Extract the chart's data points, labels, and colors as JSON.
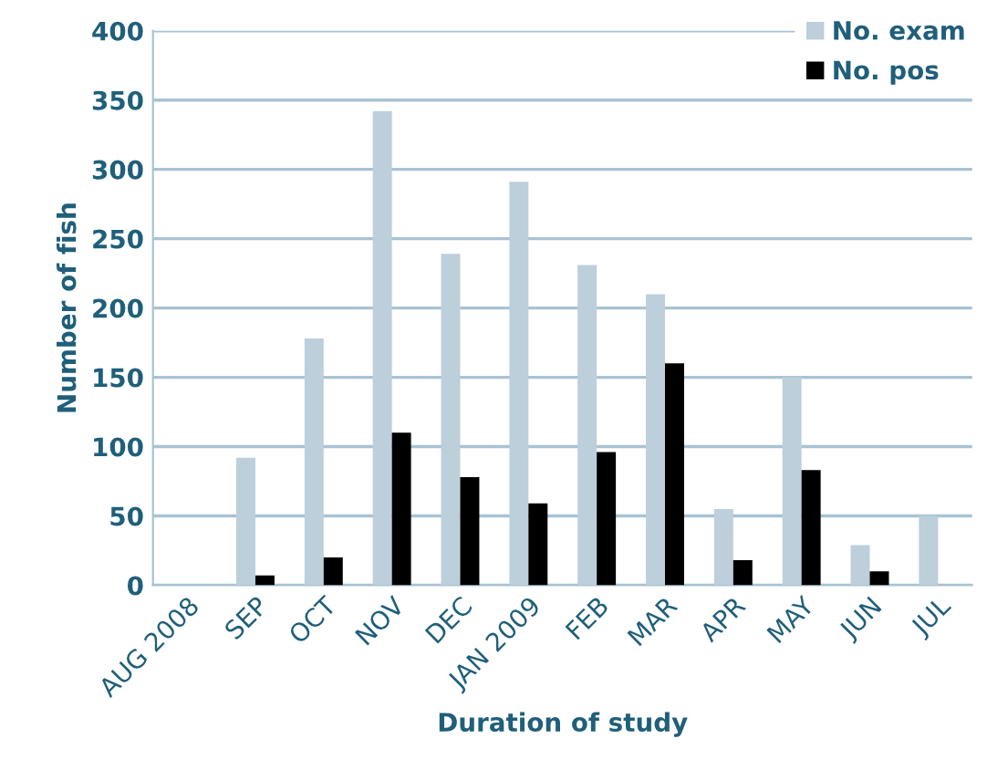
{
  "chart_data": {
    "type": "bar",
    "xlabel": "Duration of study",
    "ylabel": "Number of fish",
    "categories": [
      "AUG 2008",
      "SEP",
      "OCT",
      "NOV",
      "DEC",
      "JAN 2009",
      "FEB",
      "MAR",
      "APR",
      "MAY",
      "JUN",
      "JUL"
    ],
    "series": [
      {
        "name": "No. exam",
        "color": "#bccfdb",
        "values": [
          0,
          92,
          178,
          342,
          239,
          291,
          231,
          210,
          55,
          150,
          29,
          50
        ]
      },
      {
        "name": "No. pos",
        "color": "#000000",
        "values": [
          0,
          7,
          20,
          110,
          78,
          59,
          96,
          160,
          18,
          83,
          10,
          0
        ]
      }
    ],
    "ylim": [
      0,
      400
    ],
    "yticks": [
      0,
      50,
      100,
      150,
      200,
      250,
      300,
      350,
      400
    ],
    "grid": "y",
    "legend": "top right"
  }
}
